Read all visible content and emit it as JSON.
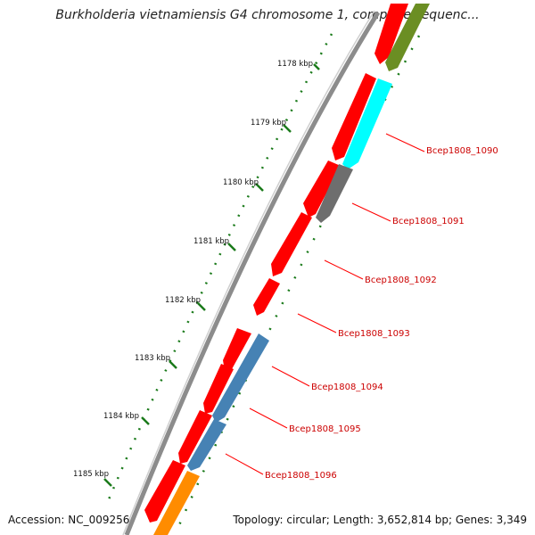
{
  "title": "Burkholderia vietnamiensis G4 chromosome 1, complete sequenc...",
  "footer": {
    "accession": "Accession: NC_009256",
    "summary": "Topology: circular; Length: 3,652,814 bp; Genes: 3,349"
  },
  "ticks": [
    "1178 kbp",
    "1179 kbp",
    "1180 kbp",
    "1181 kbp",
    "1182 kbp",
    "1183 kbp",
    "1184 kbp",
    "1185 kbp"
  ],
  "gene_labels": [
    "Bcep1808_1090",
    "Bcep1808_1091",
    "Bcep1808_1092",
    "Bcep1808_1093",
    "Bcep1808_1094",
    "Bcep1808_1095",
    "Bcep1808_1096"
  ],
  "colors": {
    "backbone": "#8c8c8c",
    "cds": "#ff0000",
    "olive": "#6b8e23",
    "cyan": "#00ffff",
    "grey": "#6e6e6e",
    "steelblue": "#4682b4",
    "orange": "#ff8c00",
    "tick": "#1a7a1a",
    "label_line": "#ff0000"
  }
}
